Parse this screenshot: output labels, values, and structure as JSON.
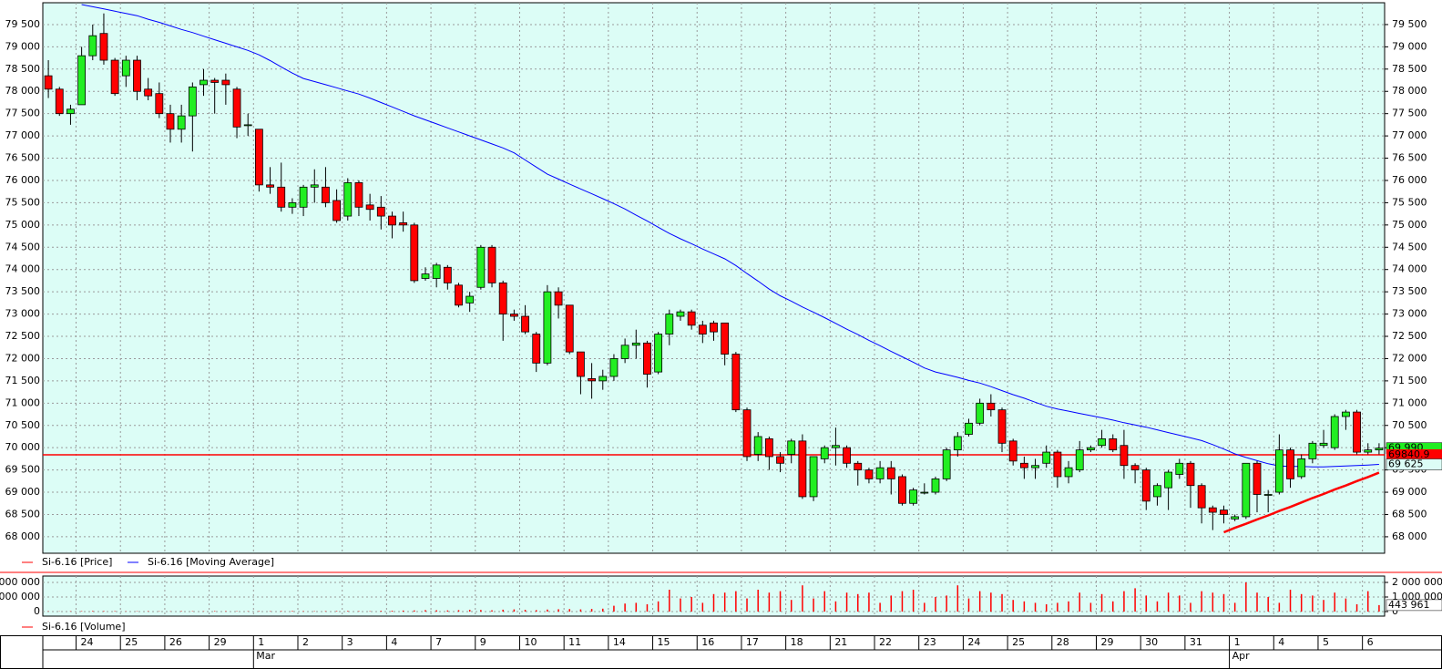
{
  "chart_data": [
    {
      "type": "candlestick",
      "name": "Si-6.16 [Price]",
      "color": "#ff0000",
      "up_color": "#22ee22",
      "down_color": "#ff0000",
      "grid": true,
      "categories": [
        null,
        null,
        null,
        "24",
        null,
        null,
        null,
        "25",
        null,
        null,
        null,
        "26",
        null,
        null,
        null,
        "29",
        null,
        null,
        null,
        "1",
        null,
        null,
        null,
        "2",
        null,
        null,
        null,
        "3",
        null,
        null,
        null,
        "4",
        null,
        null,
        null,
        "7",
        null,
        null,
        null,
        "9",
        null,
        null,
        null,
        "10",
        null,
        null,
        null,
        "11",
        null,
        null,
        null,
        "14",
        null,
        null,
        null,
        "15",
        null,
        null,
        null,
        "16",
        null,
        null,
        null,
        "17",
        null,
        null,
        null,
        "18",
        null,
        null,
        null,
        "21",
        null,
        null,
        null,
        "22",
        null,
        null,
        null,
        "23",
        null,
        null,
        null,
        "24",
        null,
        null,
        null,
        "25",
        null,
        null,
        null,
        "28",
        null,
        null,
        null,
        "29",
        null,
        null,
        null,
        "30",
        null,
        null,
        null,
        "31",
        null,
        null,
        null,
        "1",
        null,
        null,
        null,
        "4",
        null,
        null,
        null,
        "5",
        null,
        null,
        null,
        "6",
        null
      ],
      "months": [
        null,
        null,
        null,
        null,
        null,
        null,
        null,
        null,
        null,
        null,
        null,
        null,
        null,
        null,
        null,
        null,
        null,
        null,
        null,
        "Mar",
        null,
        null,
        null,
        null,
        null,
        null,
        null,
        null,
        null,
        null,
        null,
        null,
        null,
        null,
        null,
        null,
        null,
        null,
        null,
        null,
        null,
        null,
        null,
        null,
        null,
        null,
        null,
        null,
        null,
        null,
        null,
        null,
        null,
        null,
        null,
        null,
        null,
        null,
        null,
        null,
        null,
        null,
        null,
        null,
        null,
        null,
        null,
        null,
        null,
        null,
        null,
        null,
        null,
        null,
        null,
        null,
        null,
        null,
        null,
        null,
        null,
        null,
        null,
        null,
        null,
        null,
        null,
        null,
        null,
        null,
        null,
        null,
        null,
        null,
        null,
        null,
        null,
        null,
        null,
        null,
        null,
        null,
        null,
        null,
        null,
        null,
        null,
        "Apr",
        null,
        null,
        null,
        null,
        null,
        null,
        null,
        null,
        null,
        null,
        null,
        null,
        null
      ],
      "open": [
        78350,
        78050,
        77500,
        77700,
        78800,
        79300,
        78700,
        78350,
        78700,
        78050,
        77950,
        77500,
        77150,
        77450,
        78150,
        78250,
        78250,
        78050,
        77250,
        77150,
        75900,
        75850,
        75400,
        75400,
        75850,
        75850,
        75550,
        75200,
        75950,
        75450,
        75400,
        75200,
        75050,
        75000,
        73800,
        73800,
        74050,
        73650,
        73250,
        73600,
        74500,
        73700,
        73000,
        72950,
        72550,
        71900,
        73500,
        73200,
        72150,
        71550,
        71500,
        71600,
        72000,
        72300,
        72350,
        71700,
        72550,
        72950,
        73050,
        72750,
        72800,
        72800,
        72100,
        70850,
        69850,
        70200,
        69800,
        69850,
        70150,
        68900,
        69750,
        70000,
        70000,
        69650,
        69500,
        69300,
        69550,
        69350,
        68750,
        69000,
        69000,
        69300,
        69950,
        70300,
        70550,
        71000,
        70850,
        70150,
        69650,
        69550,
        69650,
        69900,
        69350,
        69500,
        69950,
        70050,
        70200,
        70050,
        69600,
        69500,
        68900,
        69100,
        69400,
        69650,
        69150,
        68650,
        68600,
        68400,
        68450,
        69650,
        68950,
        69000,
        69950,
        69350,
        69750,
        70050,
        70000,
        70700,
        70800,
        69900,
        69950
      ],
      "high": [
        78700,
        78100,
        77700,
        79000,
        79500,
        79750,
        78750,
        78800,
        78800,
        78300,
        78200,
        77700,
        77700,
        78200,
        78500,
        78300,
        78400,
        78100,
        77500,
        77150,
        76300,
        76400,
        75600,
        75900,
        76250,
        76300,
        75800,
        76050,
        76000,
        75700,
        75650,
        75300,
        75300,
        75050,
        74050,
        74150,
        74100,
        73700,
        73500,
        74550,
        74550,
        73750,
        73100,
        73200,
        72600,
        73650,
        73600,
        73200,
        72150,
        71900,
        71750,
        72100,
        72450,
        72650,
        72400,
        72600,
        73100,
        73100,
        73100,
        72850,
        72850,
        72800,
        72150,
        70900,
        70350,
        70250,
        69900,
        70200,
        70300,
        69800,
        70050,
        70450,
        70050,
        69700,
        69550,
        69700,
        69700,
        69400,
        69100,
        69200,
        69350,
        70000,
        70350,
        70650,
        71100,
        71200,
        70900,
        70200,
        69800,
        69750,
        70050,
        69950,
        69700,
        70150,
        70050,
        70400,
        70300,
        70400,
        69650,
        69550,
        69200,
        69500,
        69750,
        69700,
        69200,
        68700,
        68700,
        68500,
        69650,
        69700,
        69050,
        70300,
        70000,
        69850,
        70150,
        70400,
        70750,
        70850,
        70850,
        70100,
        70100
      ],
      "low": [
        77850,
        77450,
        77250,
        77700,
        78700,
        78600,
        77900,
        78100,
        77800,
        77800,
        77400,
        76850,
        76850,
        76650,
        77900,
        77500,
        77700,
        76950,
        77000,
        75750,
        75700,
        75300,
        75250,
        75200,
        75500,
        75400,
        75050,
        75100,
        75200,
        75100,
        74900,
        74700,
        74850,
        73700,
        73750,
        73600,
        73550,
        73150,
        73050,
        73550,
        73600,
        72400,
        72850,
        72550,
        71700,
        71850,
        72900,
        72100,
        71200,
        71100,
        71300,
        71500,
        71900,
        72000,
        71350,
        71650,
        72300,
        72850,
        72650,
        72350,
        72400,
        71850,
        70800,
        69700,
        69700,
        69500,
        69450,
        69650,
        68850,
        68800,
        69650,
        69600,
        69550,
        69150,
        69200,
        69200,
        68950,
        68700,
        68700,
        68950,
        68950,
        69250,
        69800,
        70250,
        70500,
        70700,
        69900,
        69600,
        69300,
        69300,
        69550,
        69100,
        69200,
        69450,
        69900,
        70000,
        69900,
        69300,
        69200,
        68600,
        68700,
        68600,
        69300,
        68650,
        68300,
        68150,
        68300,
        68350,
        68400,
        68550,
        68550,
        68950,
        69100,
        69300,
        69650,
        70000,
        69950,
        70400,
        69850,
        69850,
        69850
      ],
      "close": [
        78050,
        77500,
        77600,
        78800,
        79250,
        78700,
        77950,
        78700,
        78000,
        77900,
        77500,
        77150,
        77450,
        78100,
        78250,
        78200,
        78150,
        77200,
        77250,
        75900,
        75850,
        75400,
        75500,
        75850,
        75900,
        75500,
        75100,
        75950,
        75400,
        75350,
        75200,
        75000,
        75000,
        73750,
        73900,
        74100,
        73700,
        73200,
        73400,
        74500,
        73700,
        73000,
        72950,
        72600,
        71900,
        73500,
        73200,
        72150,
        71600,
        71500,
        71600,
        72000,
        72300,
        72350,
        71650,
        72550,
        73000,
        73050,
        72750,
        72550,
        72600,
        72100,
        70850,
        69800,
        70250,
        69800,
        69650,
        70150,
        68900,
        69800,
        70000,
        70050,
        69650,
        69500,
        69300,
        69550,
        69300,
        68750,
        69050,
        69000,
        69300,
        69950,
        70250,
        70550,
        71000,
        70850,
        70100,
        69700,
        69550,
        69600,
        69900,
        69350,
        69550,
        69950,
        70000,
        70200,
        69950,
        69600,
        69500,
        68800,
        69150,
        69450,
        69650,
        69150,
        68650,
        68550,
        68500,
        68450,
        69650,
        68950,
        68950,
        69950,
        69300,
        69750,
        70100,
        70100,
        70700,
        70800,
        69900,
        69950,
        69990
      ],
      "series": [
        {
          "name": "Si-6.16 [Moving Average]",
          "color": "#0000ff",
          "values": [
            null,
            null,
            null,
            79950,
            79900,
            79850,
            79800,
            79750,
            79700,
            79620,
            79550,
            79470,
            79390,
            79320,
            79240,
            79160,
            79080,
            79000,
            78920,
            78820,
            78690,
            78550,
            78410,
            78290,
            78220,
            78150,
            78080,
            78010,
            77940,
            77850,
            77750,
            77650,
            77550,
            77450,
            77360,
            77270,
            77180,
            77090,
            77000,
            76910,
            76820,
            76730,
            76620,
            76460,
            76300,
            76140,
            76030,
            75920,
            75810,
            75700,
            75590,
            75480,
            75360,
            75220,
            75090,
            74950,
            74810,
            74690,
            74580,
            74460,
            74350,
            74240,
            74090,
            73910,
            73740,
            73560,
            73410,
            73290,
            73160,
            73040,
            72920,
            72790,
            72660,
            72540,
            72410,
            72290,
            72160,
            72040,
            71920,
            71790,
            71700,
            71640,
            71580,
            71510,
            71450,
            71370,
            71280,
            71190,
            71110,
            71020,
            70930,
            70870,
            70820,
            70770,
            70720,
            70670,
            70620,
            70560,
            70510,
            70460,
            70400,
            70340,
            70280,
            70220,
            70160,
            70070,
            69970,
            69860,
            69780,
            69710,
            69640,
            69590,
            69580,
            69580,
            69570,
            69570,
            69580,
            69590,
            69600,
            69610,
            69625
          ]
        }
      ],
      "trendline": {
        "color": "#ff0000",
        "values": [
          null,
          null,
          null,
          null,
          null,
          null,
          null,
          null,
          null,
          null,
          null,
          null,
          null,
          null,
          null,
          null,
          null,
          null,
          null,
          null,
          null,
          null,
          null,
          null,
          null,
          null,
          null,
          null,
          null,
          null,
          null,
          null,
          null,
          null,
          null,
          null,
          null,
          null,
          null,
          null,
          null,
          null,
          null,
          null,
          null,
          null,
          null,
          null,
          null,
          null,
          null,
          null,
          null,
          null,
          null,
          null,
          null,
          null,
          null,
          null,
          null,
          null,
          null,
          null,
          null,
          null,
          null,
          null,
          null,
          null,
          null,
          null,
          null,
          null,
          null,
          null,
          null,
          null,
          null,
          null,
          null,
          null,
          null,
          null,
          null,
          null,
          null,
          null,
          null,
          null,
          null,
          null,
          null,
          null,
          null,
          null,
          null,
          null,
          null,
          null,
          null,
          null,
          null,
          null,
          null,
          null,
          68100,
          68200,
          68290,
          68390,
          68480,
          68580,
          68670,
          68770,
          68870,
          68960,
          69060,
          69150,
          69250,
          69340,
          69440
        ]
      },
      "hline": 69840.9,
      "price_tag": {
        "value": 69990,
        "label": "69 990"
      },
      "ma_tag": {
        "value": 69625,
        "label": "69 625"
      },
      "ylim": [
        67630,
        79990
      ],
      "yticks": [
        {
          "value": 68000,
          "label": "68 000"
        },
        {
          "value": 68500,
          "label": "68 500"
        },
        {
          "value": 69000,
          "label": "69 000"
        },
        {
          "value": 69500,
          "label": "69 500"
        },
        {
          "value": 70000,
          "label": "70 000"
        },
        {
          "value": 70500,
          "label": "70 500"
        },
        {
          "value": 71000,
          "label": "71 000"
        },
        {
          "value": 71500,
          "label": "71 500"
        },
        {
          "value": 72000,
          "label": "72 000"
        },
        {
          "value": 72500,
          "label": "72 500"
        },
        {
          "value": 73000,
          "label": "73 000"
        },
        {
          "value": 73500,
          "label": "73 500"
        },
        {
          "value": 74000,
          "label": "74 000"
        },
        {
          "value": 74500,
          "label": "74 500"
        },
        {
          "value": 75000,
          "label": "75 000"
        },
        {
          "value": 75500,
          "label": "75 500"
        },
        {
          "value": 76000,
          "label": "76 000"
        },
        {
          "value": 76500,
          "label": "76 500"
        },
        {
          "value": 77000,
          "label": "77 000"
        },
        {
          "value": 77500,
          "label": "77 500"
        },
        {
          "value": 78000,
          "label": "78 000"
        },
        {
          "value": 78500,
          "label": "78 500"
        },
        {
          "value": 79000,
          "label": "79 000"
        },
        {
          "value": 79500,
          "label": "79 500"
        }
      ]
    },
    {
      "type": "bar",
      "name": "Si-6.16 [Volume]",
      "color": "#ff0000",
      "grid": true,
      "values": [
        20000,
        15000,
        25000,
        30000,
        40000,
        35000,
        30000,
        20000,
        25000,
        30000,
        20000,
        15000,
        30000,
        25000,
        20000,
        35000,
        30000,
        25000,
        20000,
        30000,
        25000,
        35000,
        40000,
        30000,
        25000,
        30000,
        35000,
        40000,
        30000,
        25000,
        50000,
        60000,
        70000,
        80000,
        100000,
        90000,
        80000,
        100000,
        120000,
        110000,
        90000,
        130000,
        150000,
        120000,
        100000,
        140000,
        160000,
        170000,
        150000,
        180000,
        200000,
        400000,
        550000,
        600000,
        500000,
        700000,
        1500000,
        900000,
        1000000,
        600000,
        1200000,
        1300000,
        1400000,
        900000,
        1500000,
        1300000,
        1400000,
        800000,
        1800000,
        900000,
        1400000,
        700000,
        1300000,
        1200000,
        1300000,
        600000,
        1100000,
        1400000,
        1500000,
        600000,
        1000000,
        1100000,
        1800000,
        900000,
        1400000,
        1300000,
        1200000,
        800000,
        700000,
        600000,
        500000,
        600000,
        700000,
        1300000,
        600000,
        1200000,
        700000,
        1400000,
        1600000,
        1100000,
        700000,
        1300000,
        1100000,
        600000,
        1400000,
        1300000,
        1200000,
        600000,
        2000000,
        1300000,
        1000000,
        600000,
        1500000,
        1200000,
        1100000,
        800000,
        1300000,
        900000,
        500000,
        1400000,
        443961
      ],
      "last_tag": {
        "value": 443961,
        "label": "443 961"
      },
      "ylim": [
        -312500,
        2437500
      ],
      "yticks": [
        {
          "value": 2000000,
          "label": "2 000 000"
        },
        {
          "value": 1000000,
          "label": "1 000 000"
        },
        0
      ]
    }
  ]
}
